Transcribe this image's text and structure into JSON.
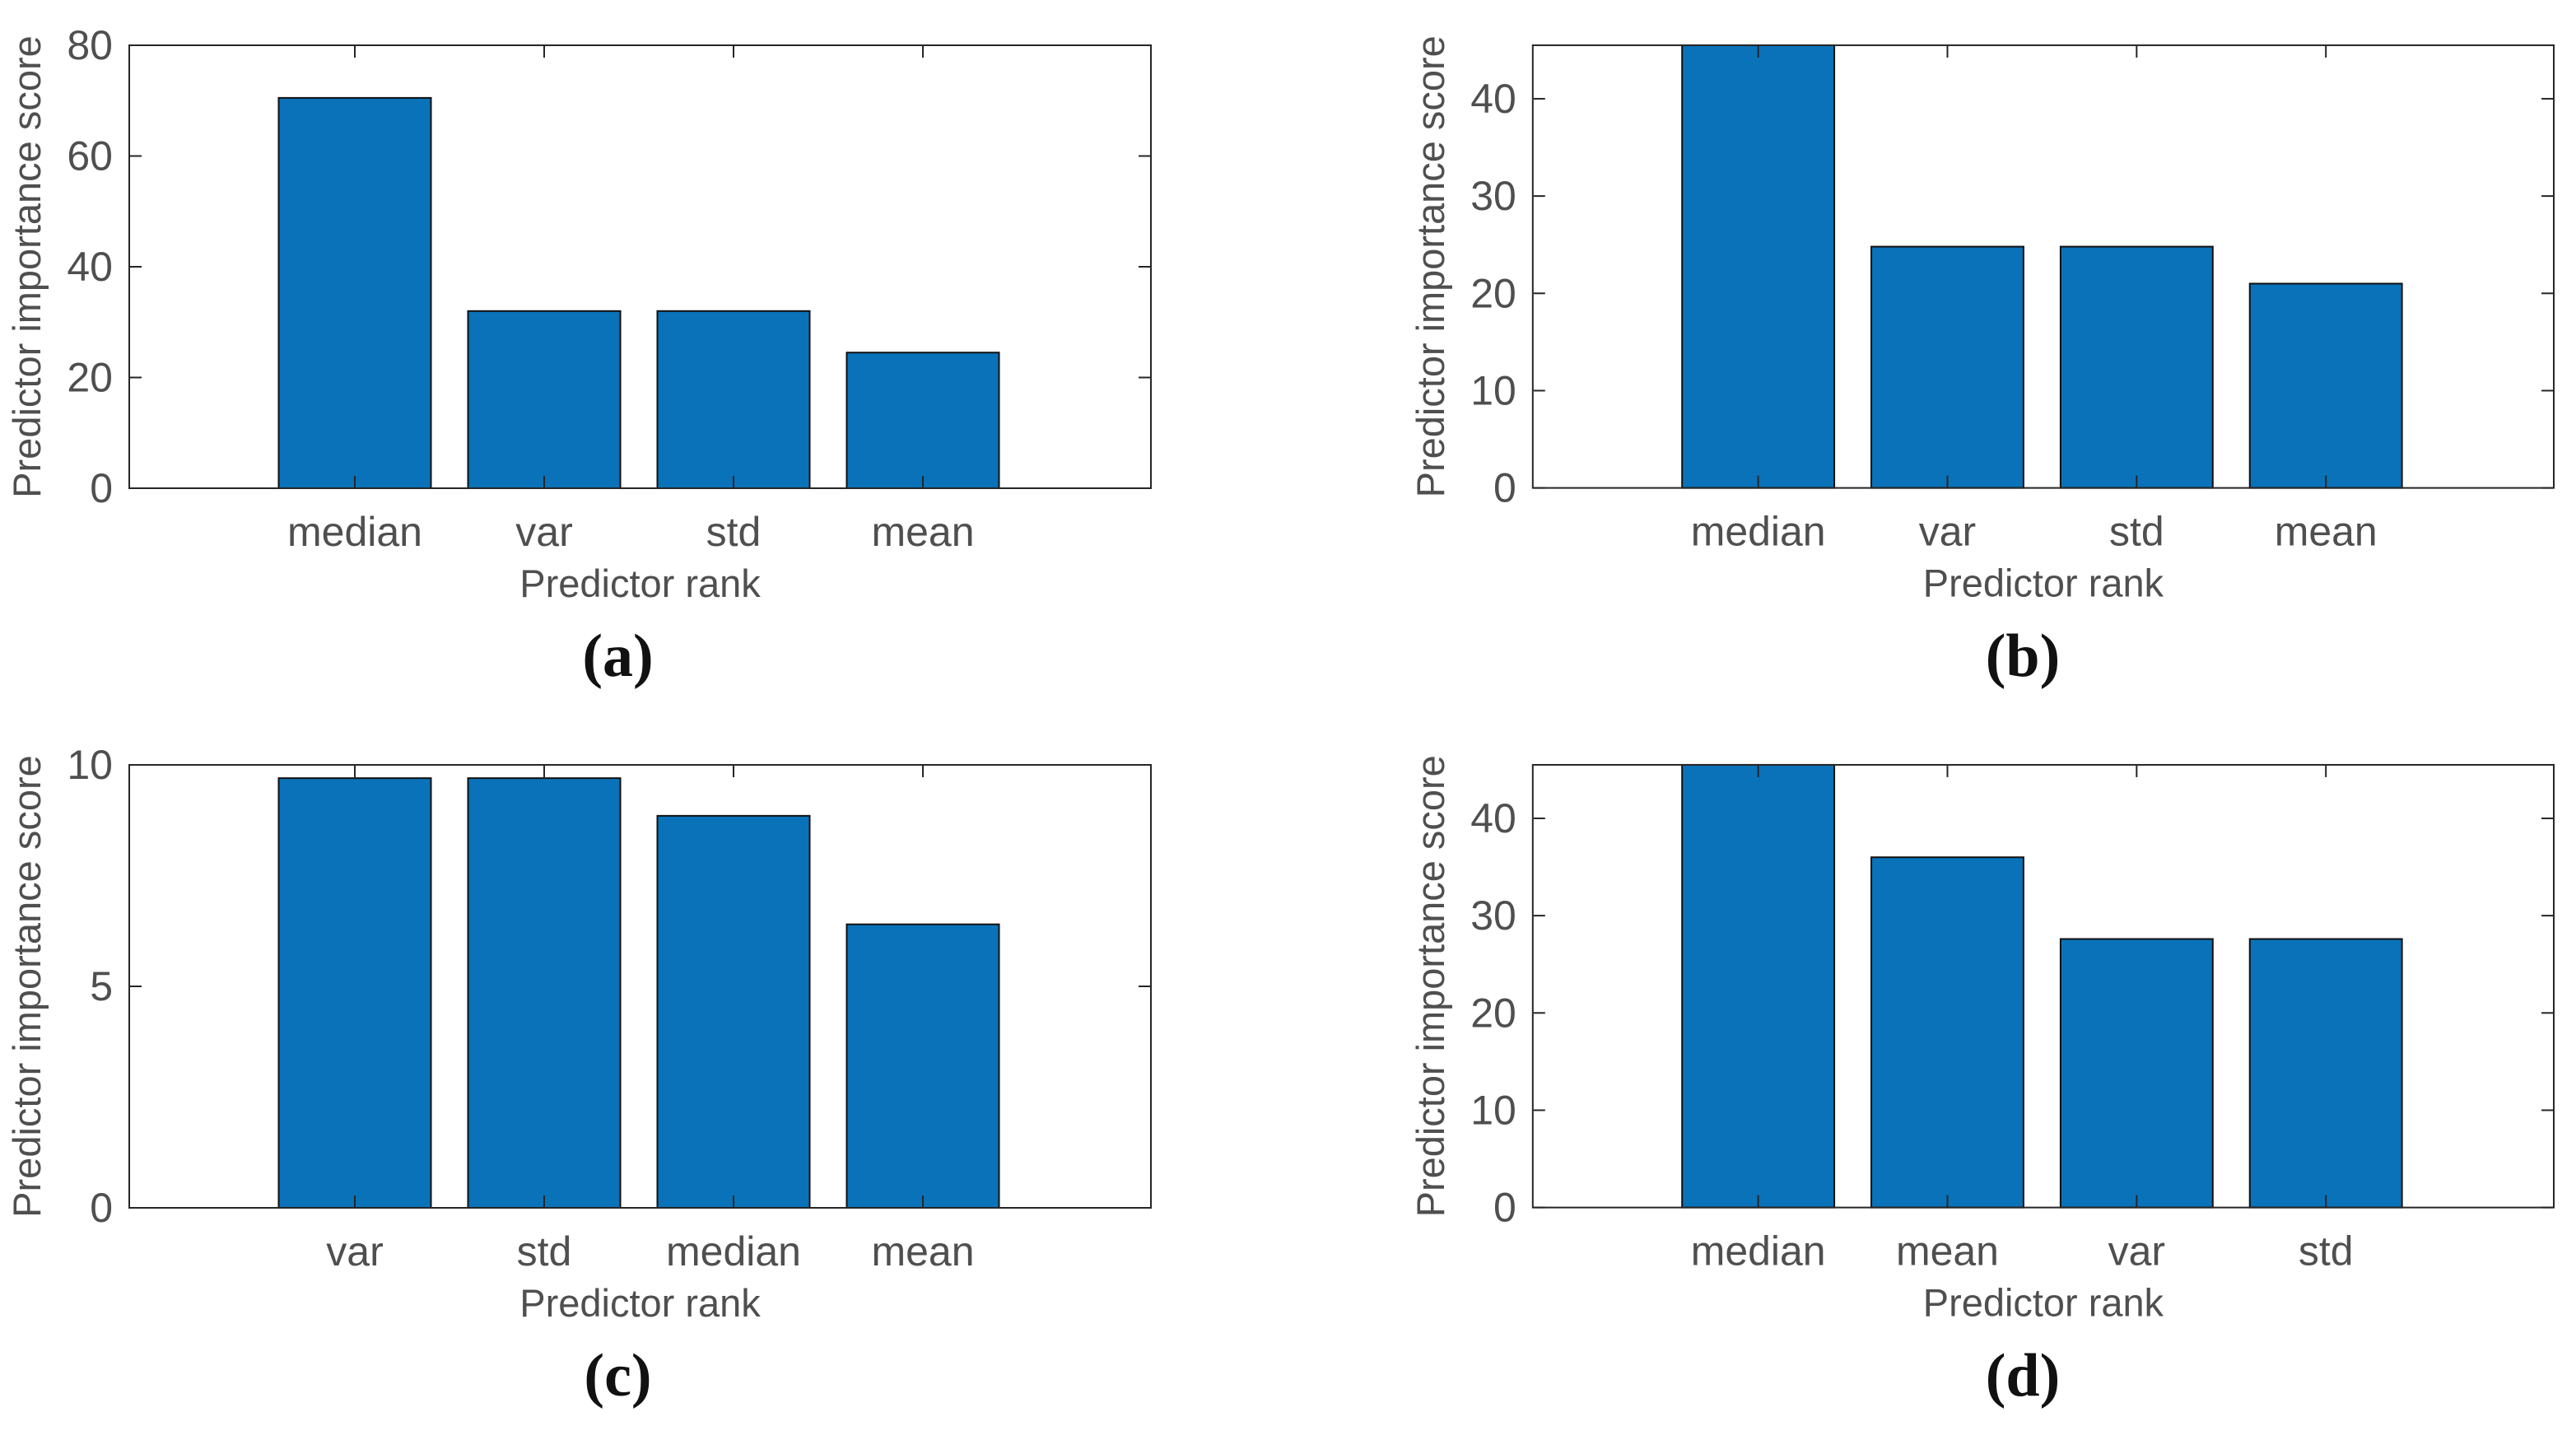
{
  "page": {
    "background": "#ffffff"
  },
  "colors": {
    "bar_fill": "#0a72b8",
    "bar_edge": "#111111",
    "axis": "#262626",
    "tick_text": "#4f4f4f",
    "caption_text": "#111111"
  },
  "chart_data": [
    {
      "type": "bar",
      "panel_label": "(a)",
      "categories": [
        "median",
        "var",
        "std",
        "mean"
      ],
      "values": [
        70.5,
        32,
        32,
        24.5
      ],
      "title": "",
      "xlabel": "Predictor rank",
      "ylabel": "Predictor importance score",
      "ylim": [
        0,
        80
      ],
      "yticks": [
        0,
        20,
        40,
        60,
        80
      ],
      "grid": false,
      "legend": null
    },
    {
      "type": "bar",
      "panel_label": "(b)",
      "categories": [
        "median",
        "var",
        "std",
        "mean"
      ],
      "values": [
        45.5,
        24.8,
        24.8,
        21
      ],
      "title": "",
      "xlabel": "Predictor rank",
      "ylabel": "Predictor importance score",
      "ylim": [
        0,
        45.5
      ],
      "yticks": [
        0,
        10,
        20,
        30,
        40
      ],
      "grid": false,
      "legend": null
    },
    {
      "type": "bar",
      "panel_label": "(c)",
      "categories": [
        "var",
        "std",
        "median",
        "mean"
      ],
      "values": [
        9.7,
        9.7,
        8.85,
        6.4
      ],
      "title": "",
      "xlabel": "Predictor rank",
      "ylabel": "Predictor importance score",
      "ylim": [
        0,
        10
      ],
      "yticks": [
        0,
        5,
        10
      ],
      "grid": false,
      "legend": null
    },
    {
      "type": "bar",
      "panel_label": "(d)",
      "categories": [
        "median",
        "mean",
        "var",
        "std"
      ],
      "values": [
        45.5,
        36,
        27.6,
        27.6
      ],
      "title": "",
      "xlabel": "Predictor rank",
      "ylabel": "Predictor importance score",
      "ylim": [
        0,
        45.5
      ],
      "yticks": [
        0,
        10,
        20,
        30,
        40
      ],
      "grid": false,
      "legend": null
    }
  ]
}
